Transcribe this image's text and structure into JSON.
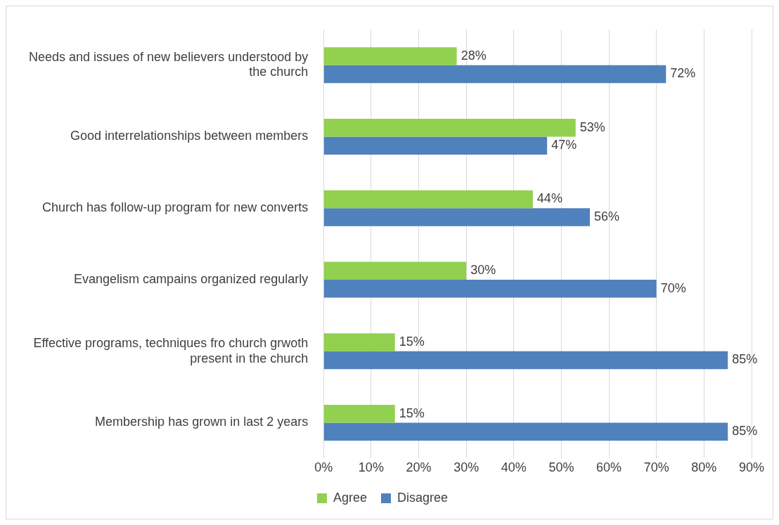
{
  "chart_data": {
    "type": "bar",
    "orientation": "horizontal",
    "categories": [
      "Needs and issues of new believers understood by the church",
      "Good interrelationships between members",
      "Church has follow-up program for new converts",
      "Evangelism campains organized regularly",
      "Effective programs, techniques fro church grwoth present in the church",
      "Membership has grown in last 2 years"
    ],
    "series": [
      {
        "name": "Agree",
        "color": "#92d050",
        "values": [
          28,
          53,
          44,
          30,
          15,
          15
        ],
        "value_labels": [
          "28%",
          "53%",
          "44%",
          "30%",
          "15%",
          "15%"
        ]
      },
      {
        "name": "Disagree",
        "color": "#4f81bd",
        "values": [
          72,
          47,
          56,
          70,
          85,
          85
        ],
        "value_labels": [
          "72%",
          "47%",
          "56%",
          "70%",
          "85%",
          "85%"
        ]
      }
    ],
    "xlim": [
      0,
      90
    ],
    "xticks": [
      {
        "value": 0,
        "label": "0%"
      },
      {
        "value": 10,
        "label": "10%"
      },
      {
        "value": 20,
        "label": "20%"
      },
      {
        "value": 30,
        "label": "30%"
      },
      {
        "value": 40,
        "label": "40%"
      },
      {
        "value": 50,
        "label": "50%"
      },
      {
        "value": 60,
        "label": "60%"
      },
      {
        "value": 70,
        "label": "70%"
      },
      {
        "value": 80,
        "label": "80%"
      },
      {
        "value": 90,
        "label": "90%"
      }
    ],
    "grid": "x",
    "legend": "bottom"
  }
}
